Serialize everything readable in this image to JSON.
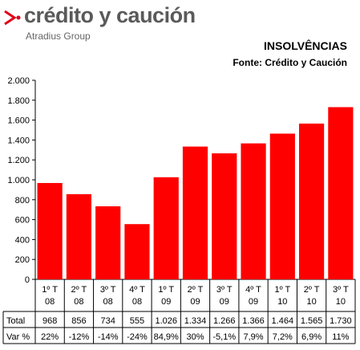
{
  "brand": {
    "name": "crédito y caución",
    "subtitle": "Atradius Group",
    "mark_color": "#e2001a"
  },
  "chart_data": {
    "type": "bar",
    "title": "INSOLVÊNCIAS",
    "subtitle": "Fonte: Crédito y Caución",
    "categories": [
      [
        "1º T",
        "08"
      ],
      [
        "2º T",
        "08"
      ],
      [
        "3º T",
        "08"
      ],
      [
        "4º T",
        "08"
      ],
      [
        "1º T",
        "09"
      ],
      [
        "2º T",
        "09"
      ],
      [
        "3º T",
        "09"
      ],
      [
        "4º T",
        "09"
      ],
      [
        "1º T",
        "10"
      ],
      [
        "2º T",
        "10"
      ],
      [
        "3º T",
        "10"
      ]
    ],
    "values": [
      968,
      856,
      734,
      555,
      1026,
      1334,
      1266,
      1366,
      1464,
      1565,
      1730
    ],
    "ylim": [
      0,
      2000
    ],
    "yticks": [
      0,
      200,
      400,
      600,
      800,
      1000,
      1200,
      1400,
      1600,
      1800,
      2000
    ],
    "ytick_labels": [
      "0",
      "200",
      "400",
      "600",
      "800",
      "1.000",
      "1.200",
      "1.400",
      "1.600",
      "1.800",
      "2.000"
    ],
    "bar_color": "#ff0000",
    "grid": false,
    "table": {
      "rows": [
        {
          "label": "Total",
          "cells": [
            "968",
            "856",
            "734",
            "555",
            "1.026",
            "1.334",
            "1.266",
            "1.366",
            "1.464",
            "1.565",
            "1.730"
          ]
        },
        {
          "label": "Var %",
          "cells": [
            "22%",
            "-12%",
            "-14%",
            "-24%",
            "84,9%",
            "30%",
            "-5,1%",
            "7,9%",
            "7,2%",
            "6,9%",
            "11%"
          ]
        }
      ]
    }
  }
}
